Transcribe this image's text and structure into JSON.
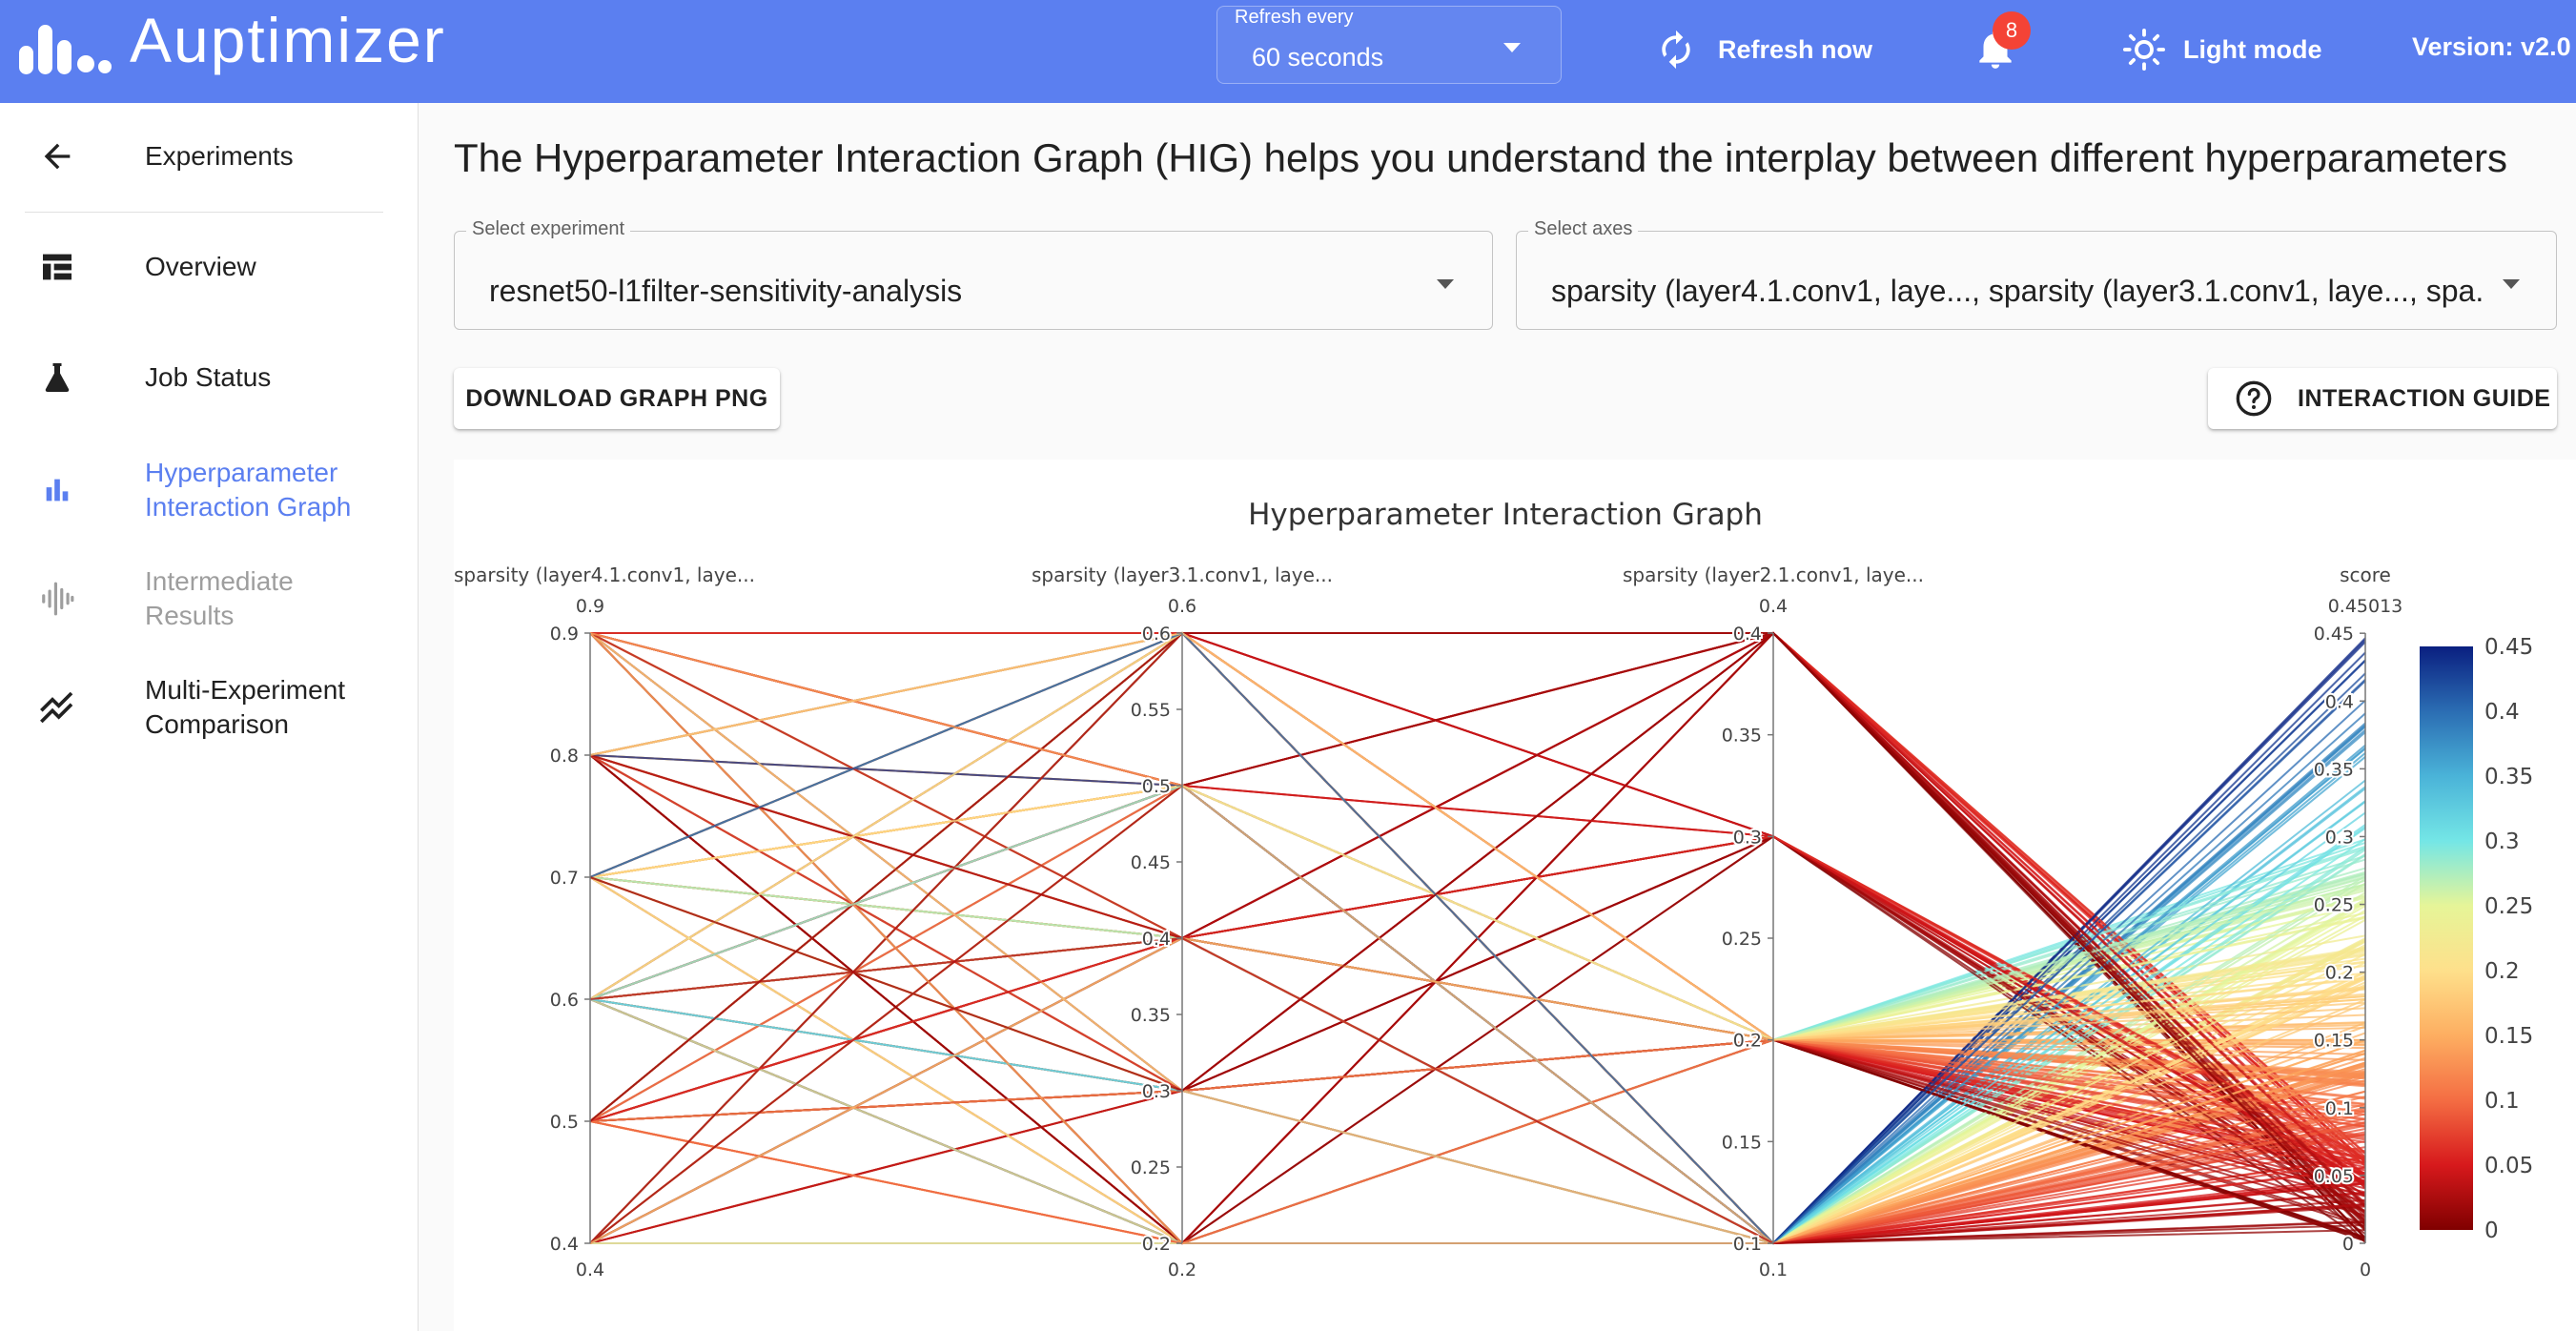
{
  "header": {
    "app_title": "Auptimizer",
    "refresh_label": "Refresh every",
    "refresh_value": "60 seconds",
    "refresh_now": "Refresh now",
    "notifications_count": "8",
    "theme_toggle": "Light mode",
    "version": "Version: v2.0",
    "colors": {
      "topbar": "#5b7ff0",
      "badge": "#f44336"
    }
  },
  "sidebar": {
    "items": [
      {
        "label": "Experiments",
        "icon": "arrow-left-icon"
      },
      {
        "label": "Overview",
        "icon": "table-icon"
      },
      {
        "label": "Job Status",
        "icon": "flask-icon"
      },
      {
        "label": "Hyperparameter Interaction Graph",
        "icon": "bar-chart-icon",
        "active": true
      },
      {
        "label": "Intermediate Results",
        "icon": "waveform-icon",
        "disabled": true
      },
      {
        "label": "Multi-Experiment Comparison",
        "icon": "multiline-chart-icon"
      }
    ],
    "active_color": "#5b7ff0"
  },
  "main": {
    "heading": "The Hyperparameter Interaction Graph (HIG) helps you understand the interplay between different hyperparameters",
    "experiment_select": {
      "label": "Select experiment",
      "value": "resnet50-l1filter-sensitivity-analysis"
    },
    "axes_select": {
      "label": "Select axes",
      "value": "sparsity (layer4.1.conv1, laye..., sparsity (layer3.1.conv1, laye..., spa..."
    },
    "download_button": "DOWNLOAD GRAPH PNG",
    "guide_button": "INTERACTION GUIDE"
  },
  "chart_data": {
    "type": "parallel-coordinates",
    "title": "Hyperparameter Interaction Graph",
    "axes": [
      {
        "label": "sparsity (layer4.1.conv1, laye...",
        "range": [
          0.4,
          0.9
        ],
        "min_label": "0.4",
        "max_label": "0.9",
        "ticks": [
          0.4,
          0.5,
          0.6,
          0.7,
          0.8,
          0.9
        ]
      },
      {
        "label": "sparsity (layer3.1.conv1, laye...",
        "range": [
          0.2,
          0.6
        ],
        "min_label": "0.2",
        "max_label": "0.6",
        "ticks": [
          0.2,
          0.25,
          0.3,
          0.35,
          0.4,
          0.45,
          0.5,
          0.55,
          0.6
        ]
      },
      {
        "label": "sparsity (layer2.1.conv1, laye...",
        "range": [
          0.1,
          0.4
        ],
        "min_label": "0.1",
        "max_label": "0.4",
        "ticks": [
          0.1,
          0.15,
          0.2,
          0.25,
          0.3,
          0.35,
          0.4
        ]
      },
      {
        "label": "score",
        "range": [
          0,
          0.45013
        ],
        "min_label": "0",
        "max_label": "0.45013",
        "ticks": [
          0,
          0.05,
          0.1,
          0.15,
          0.2,
          0.25,
          0.3,
          0.35,
          0.4,
          0.45
        ]
      }
    ],
    "colorscale": {
      "range": [
        0,
        0.45
      ],
      "ticks": [
        0,
        0.05,
        0.1,
        0.15,
        0.2,
        0.25,
        0.3,
        0.35,
        0.4,
        0.45
      ],
      "stops": [
        "#800000",
        "#d7191c",
        "#f46d43",
        "#fdae61",
        "#fee08b",
        "#e6f598",
        "#74e6e6",
        "#4ab3d8",
        "#2b6db3",
        "#0a1f80"
      ]
    }
  }
}
